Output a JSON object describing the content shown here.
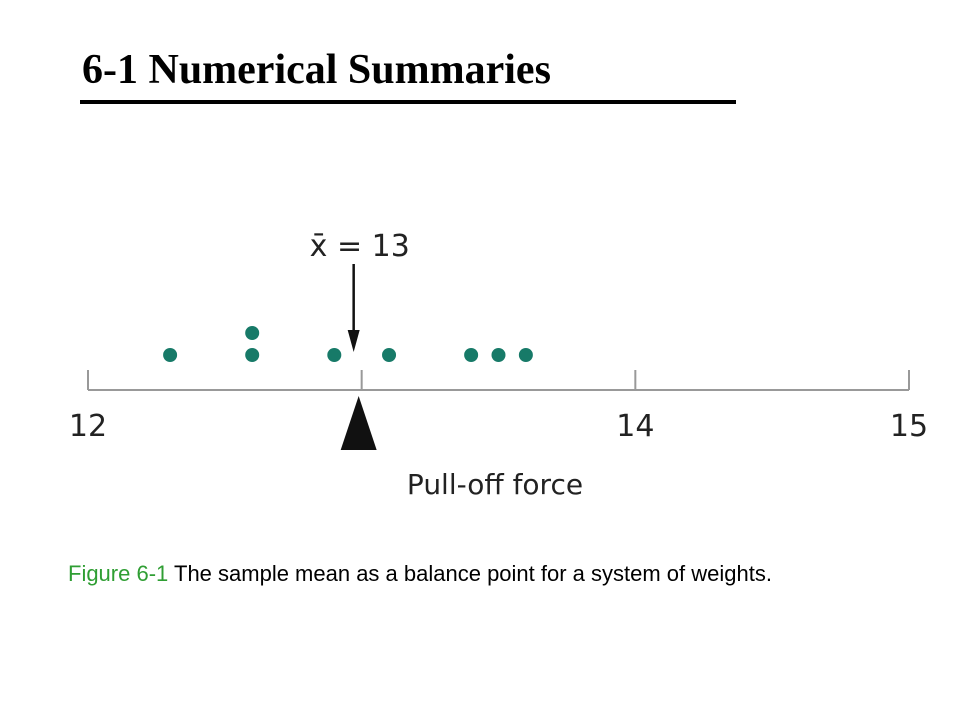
{
  "title": "6-1 Numerical Summaries",
  "chart_data": {
    "type": "dot",
    "x": [
      12.3,
      12.6,
      12.6,
      12.9,
      13.1,
      13.4,
      13.5,
      13.6
    ],
    "color": "#177a68",
    "xlim": [
      12,
      15
    ],
    "xticks": [
      12,
      14,
      15
    ],
    "xlabel": "Pull-off force",
    "mean": {
      "value": 13,
      "label": "x̄ = 13"
    }
  },
  "caption": {
    "label": "Figure 6-1",
    "text": "The sample mean as a balance point for a system of weights."
  }
}
